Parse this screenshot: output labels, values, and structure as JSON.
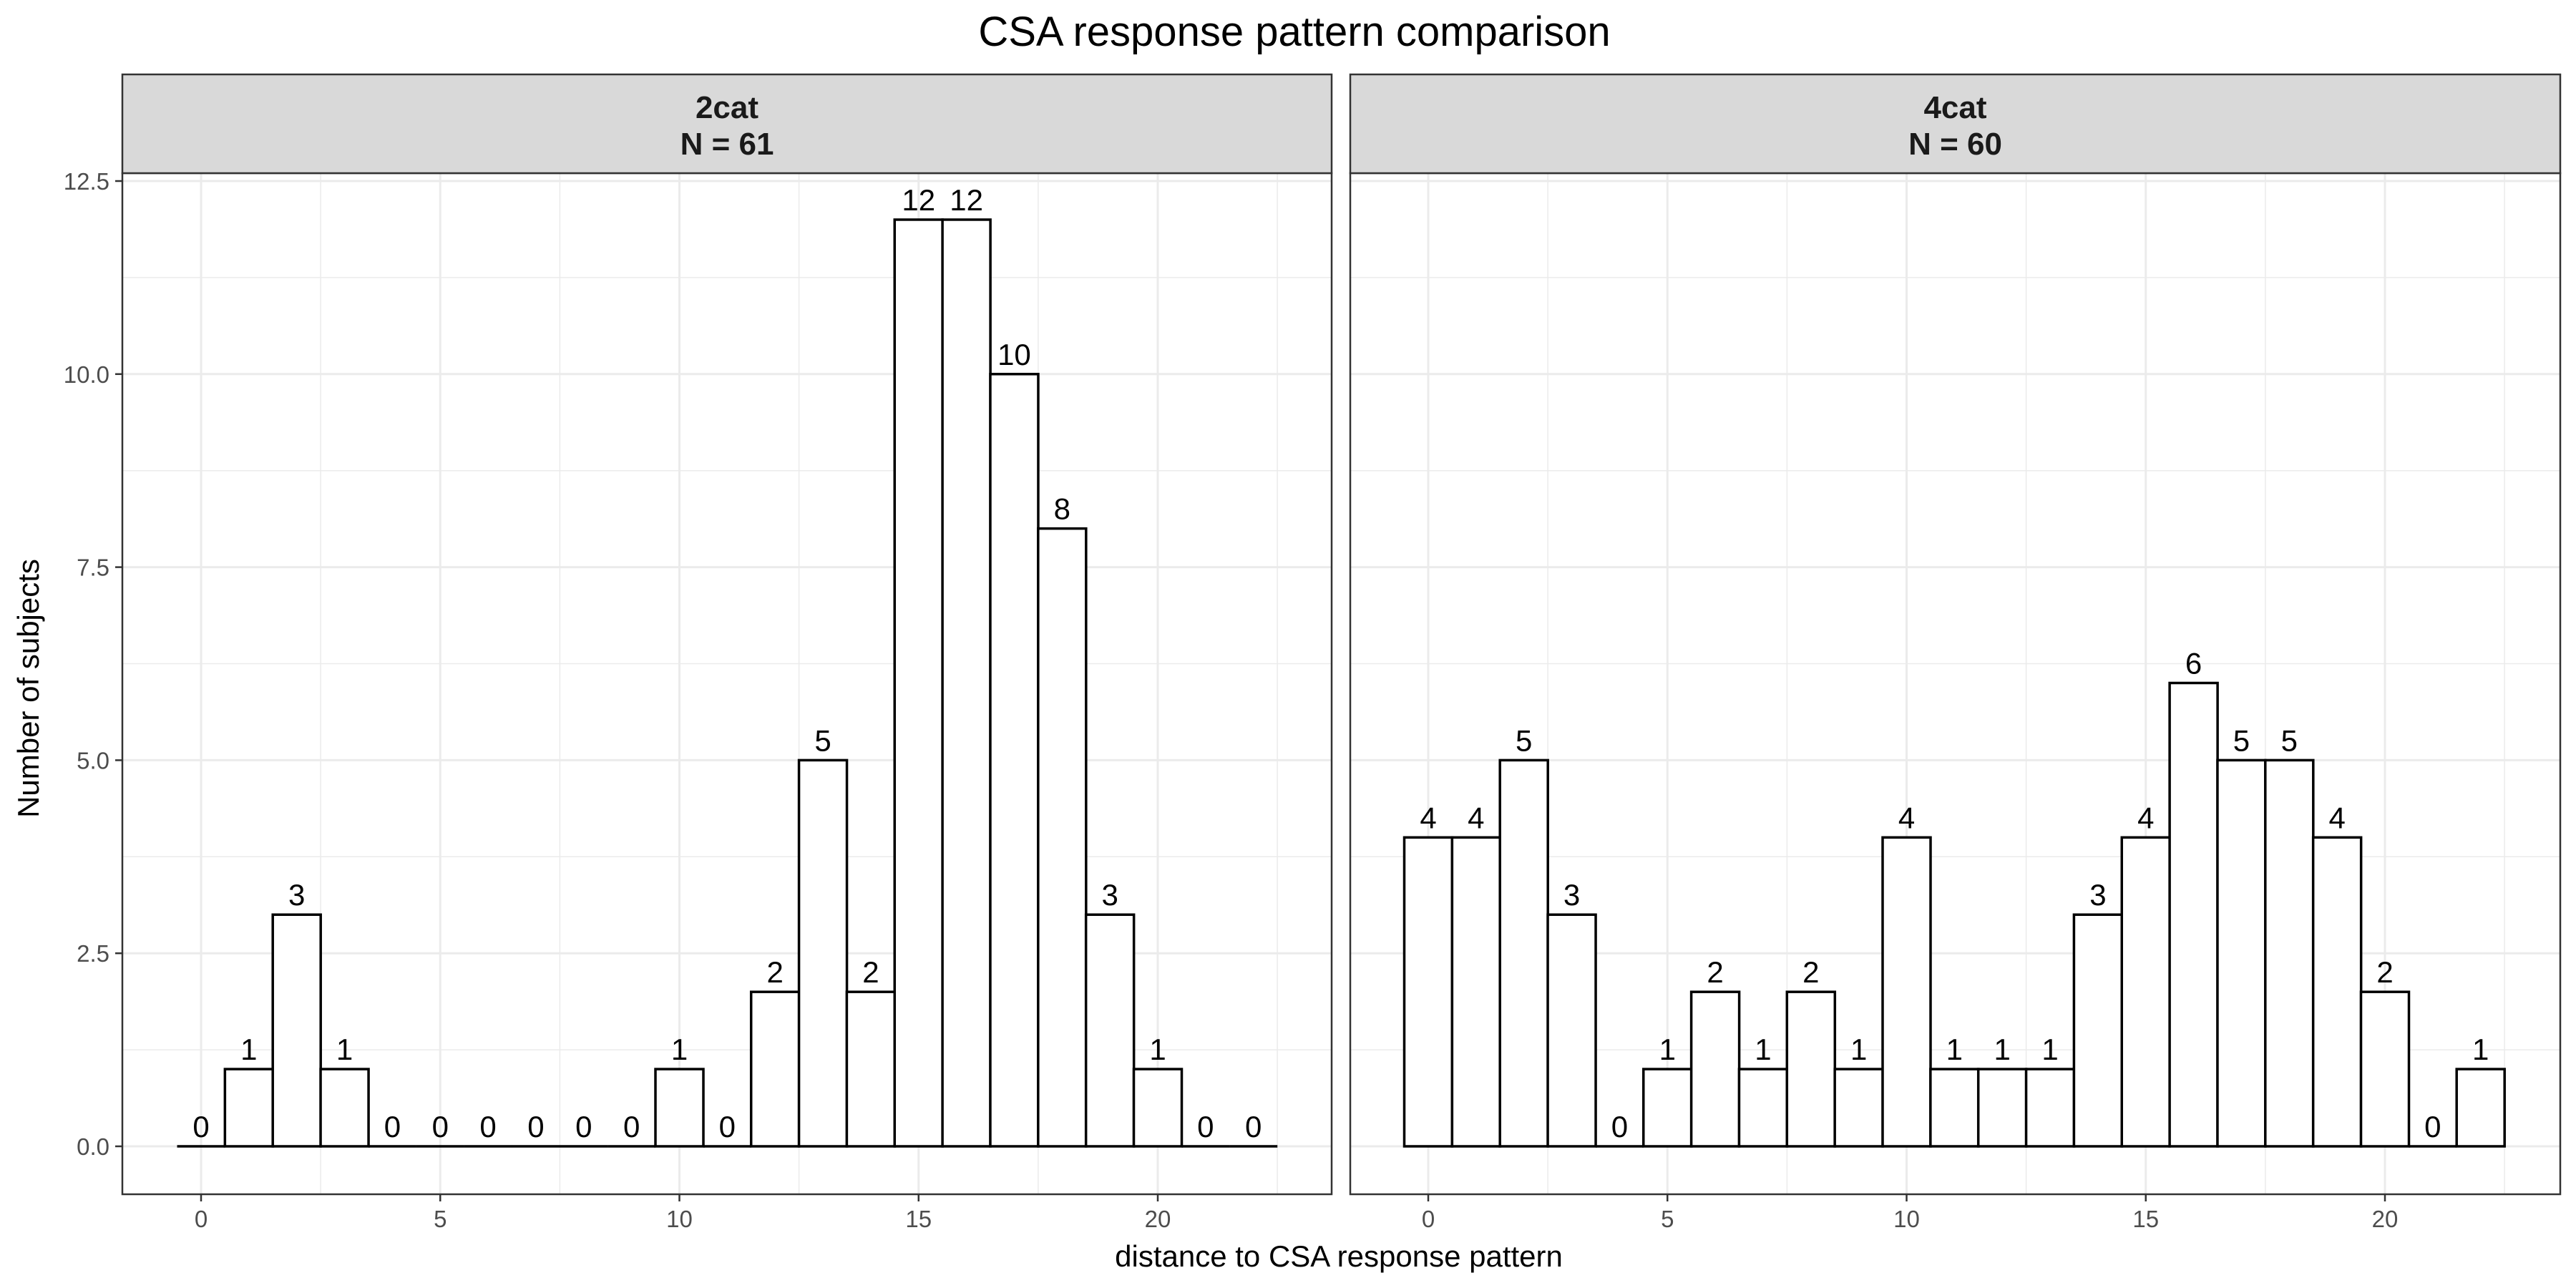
{
  "title": "CSA response pattern comparison",
  "xlabel": "distance to CSA response pattern",
  "ylabel": "Number of subjects",
  "colors": {
    "panel_background": "#ffffff",
    "strip_background": "#d9d9d9",
    "grid": "#ebebeb",
    "bar_fill": "#ffffff",
    "bar_stroke": "#000000"
  },
  "chart_data": {
    "type": "bar",
    "title": "CSA response pattern comparison",
    "xlabel": "distance to CSA response pattern",
    "ylabel": "Number of subjects",
    "x": [
      0,
      1,
      2,
      3,
      4,
      5,
      6,
      7,
      8,
      9,
      10,
      11,
      12,
      13,
      14,
      15,
      16,
      17,
      18,
      19,
      20,
      21,
      22
    ],
    "xlim": [
      -0.5,
      22.5
    ],
    "ylim": [
      0,
      12.5
    ],
    "x_ticks": [
      0,
      5,
      10,
      15,
      20
    ],
    "y_ticks": [
      "0.0",
      "2.5",
      "5.0",
      "7.5",
      "10.0",
      "12.5"
    ],
    "grid": true,
    "legend": "none",
    "facets": [
      {
        "strip": "2cat",
        "strip_n": "N = 61",
        "values": [
          0,
          1,
          3,
          1,
          0,
          0,
          0,
          0,
          0,
          0,
          1,
          0,
          2,
          5,
          2,
          12,
          12,
          10,
          8,
          3,
          1,
          0,
          0
        ]
      },
      {
        "strip": "4cat",
        "strip_n": "N = 60",
        "values": [
          4,
          4,
          5,
          3,
          0,
          1,
          2,
          1,
          2,
          1,
          4,
          1,
          1,
          1,
          3,
          4,
          6,
          5,
          5,
          4,
          2,
          0,
          1
        ]
      }
    ]
  }
}
